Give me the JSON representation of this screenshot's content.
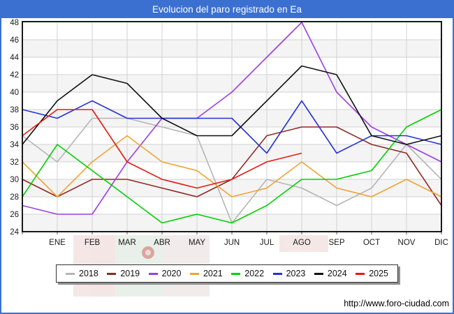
{
  "header": {
    "title": "Evolucion del paro registrado en Ea"
  },
  "footer": {
    "url": "http://www.foro-ciudad.com"
  },
  "colors": {
    "banner_blue": "#3b70d1",
    "plot_border": "#000000",
    "grid_line": "#d2d2d2",
    "band_fill": "#f4f4f4",
    "axis_text": "#1a1a1a",
    "watermark_pink": "#f3e4e3",
    "watermark_green": "#e7efe7",
    "watermark_pale": "#f0eae9",
    "watermark_crest": "#c03a30"
  },
  "chart_data": {
    "type": "line",
    "title": "Evolucion del paro registrado en Ea",
    "x_categories": [
      "ENE",
      "FEB",
      "MAR",
      "ABR",
      "MAY",
      "JUN",
      "JUL",
      "AGO",
      "SEP",
      "OCT",
      "NOV",
      "DIC"
    ],
    "y_ticks": [
      48,
      46,
      44,
      42,
      40,
      38,
      36,
      34,
      32,
      30,
      28,
      26,
      24
    ],
    "y_axis": {
      "min": 24,
      "max": 48,
      "step": 2
    },
    "grid": true,
    "legend_position": "bottom",
    "note": "First value of each series sits on the left axis border (year start), followed by the 12 monthly values ENE-DIC. 2025 data ends in AGO.",
    "series": [
      {
        "name": "2018",
        "color": "#b5b5b5",
        "values": [
          35,
          32,
          37,
          37,
          36,
          35,
          25,
          30,
          29,
          27,
          29,
          34,
          30
        ]
      },
      {
        "name": "2019",
        "color": "#8f2a25",
        "values": [
          30,
          28,
          30,
          30,
          29,
          28,
          30,
          35,
          36,
          36,
          34,
          33,
          27
        ]
      },
      {
        "name": "2020",
        "color": "#9a3fe0",
        "values": [
          27,
          26,
          26,
          32,
          37,
          37,
          40,
          44,
          48,
          40,
          36,
          34,
          32
        ]
      },
      {
        "name": "2021",
        "color": "#f0a432",
        "values": [
          32,
          28,
          32,
          35,
          32,
          31,
          28,
          29,
          32,
          29,
          28,
          30,
          28
        ]
      },
      {
        "name": "2022",
        "color": "#00d200",
        "values": [
          28,
          34,
          31,
          28,
          25,
          26,
          25,
          27,
          30,
          30,
          31,
          36,
          38
        ]
      },
      {
        "name": "2023",
        "color": "#2432d8",
        "values": [
          38,
          37,
          39,
          37,
          37,
          37,
          37,
          33,
          39,
          33,
          35,
          35,
          34
        ]
      },
      {
        "name": "2024",
        "color": "#101010",
        "values": [
          34,
          39,
          42,
          41,
          37,
          35,
          35,
          39,
          43,
          42,
          35,
          34,
          35
        ]
      },
      {
        "name": "2025",
        "color": "#e51a12",
        "values": [
          35,
          38,
          38,
          32,
          30,
          29,
          30,
          32,
          33
        ]
      }
    ]
  }
}
